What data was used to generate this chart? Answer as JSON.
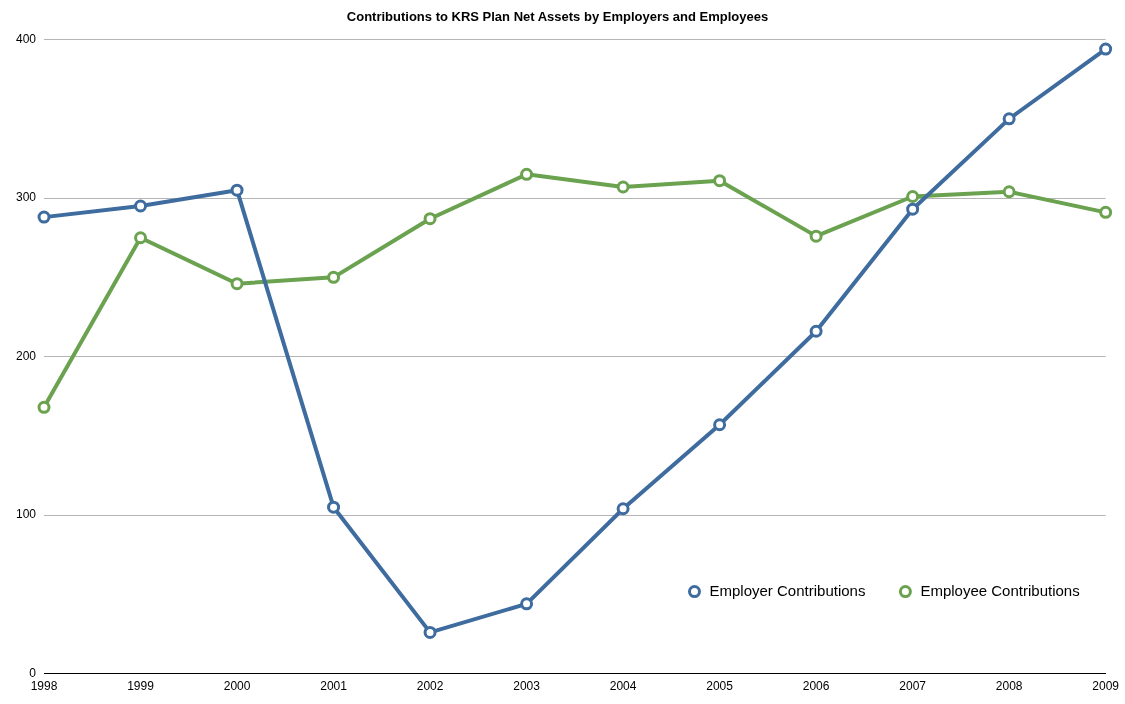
{
  "chart_data": {
    "type": "line",
    "title": "Contributions to KRS Plan Net Assets by Employers and Employees",
    "categories": [
      "1998",
      "1999",
      "2000",
      "2001",
      "2002",
      "2003",
      "2004",
      "2005",
      "2006",
      "2007",
      "2008",
      "2009"
    ],
    "series": [
      {
        "name": "Employer Contributions",
        "color": "#3f6c9f",
        "values": [
          288,
          295,
          305,
          105,
          26,
          44,
          104,
          157,
          216,
          293,
          350,
          394
        ]
      },
      {
        "name": "Employee Contributions",
        "color": "#6aa24f",
        "values": [
          168,
          275,
          246,
          250,
          287,
          315,
          307,
          311,
          276,
          301,
          304,
          291
        ]
      }
    ],
    "ylim": [
      0,
      400
    ],
    "yticks": [
      0,
      100,
      200,
      300,
      400
    ],
    "grid": "y",
    "legend": "bottom right",
    "marker": "circle",
    "line_style": "solid"
  }
}
